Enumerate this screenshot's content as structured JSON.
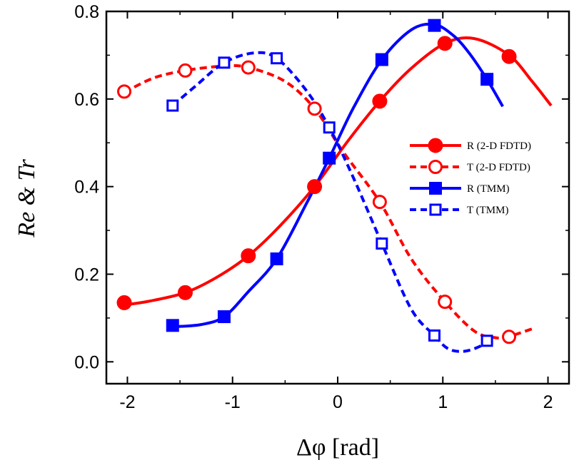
{
  "chart_data": {
    "type": "line",
    "title": "",
    "xlabel": "Δφ [rad]",
    "ylabel": "Re & Tr",
    "xlim": [
      -2.2,
      2.2
    ],
    "ylim": [
      -0.05,
      0.8
    ],
    "xticks": [
      "-2",
      "-1",
      "0",
      "1",
      "2"
    ],
    "xtick_values": [
      -2,
      -1,
      0,
      1,
      2
    ],
    "yticks": [
      "0.0",
      "0.2",
      "0.4",
      "0.6",
      "0.8"
    ],
    "ytick_values": [
      0.0,
      0.2,
      0.4,
      0.6,
      0.8
    ],
    "legend_position": "right-middle",
    "series": [
      {
        "name": "R (2-D FDTD)",
        "color": "#ff0000",
        "line": "solid",
        "marker": "filled-circle",
        "points": [
          [
            -2.03,
            0.135
          ],
          [
            -1.45,
            0.158
          ],
          [
            -0.85,
            0.242
          ],
          [
            -0.22,
            0.4
          ],
          [
            0.4,
            0.595
          ],
          [
            1.02,
            0.727
          ],
          [
            1.63,
            0.697
          ]
        ],
        "curve": [
          [
            -2.03,
            0.13
          ],
          [
            -1.8,
            0.138
          ],
          [
            -1.45,
            0.158
          ],
          [
            -1.15,
            0.193
          ],
          [
            -0.85,
            0.242
          ],
          [
            -0.55,
            0.31
          ],
          [
            -0.22,
            0.4
          ],
          [
            0.1,
            0.505
          ],
          [
            0.4,
            0.595
          ],
          [
            0.7,
            0.67
          ],
          [
            1.02,
            0.727
          ],
          [
            1.3,
            0.738
          ],
          [
            1.63,
            0.7
          ],
          [
            1.85,
            0.64
          ],
          [
            2.03,
            0.585
          ]
        ]
      },
      {
        "name": "T (2-D FDTD)",
        "color": "#ff0000",
        "line": "dashed",
        "marker": "open-circle",
        "points": [
          [
            -2.03,
            0.617
          ],
          [
            -1.45,
            0.665
          ],
          [
            -0.85,
            0.672
          ],
          [
            -0.22,
            0.578
          ],
          [
            0.4,
            0.365
          ],
          [
            1.02,
            0.137
          ],
          [
            1.63,
            0.057
          ]
        ],
        "curve": [
          [
            -2.03,
            0.615
          ],
          [
            -1.75,
            0.648
          ],
          [
            -1.45,
            0.665
          ],
          [
            -1.1,
            0.675
          ],
          [
            -0.85,
            0.672
          ],
          [
            -0.5,
            0.64
          ],
          [
            -0.22,
            0.578
          ],
          [
            0.05,
            0.48
          ],
          [
            0.4,
            0.365
          ],
          [
            0.7,
            0.235
          ],
          [
            1.02,
            0.137
          ],
          [
            1.3,
            0.07
          ],
          [
            1.5,
            0.055
          ],
          [
            1.63,
            0.058
          ],
          [
            1.87,
            0.077
          ]
        ]
      },
      {
        "name": "R (TMM)",
        "color": "#0000ff",
        "line": "solid",
        "marker": "filled-square",
        "points": [
          [
            -1.57,
            0.083
          ],
          [
            -1.08,
            0.103
          ],
          [
            -0.58,
            0.235
          ],
          [
            -0.08,
            0.465
          ],
          [
            0.42,
            0.69
          ],
          [
            0.92,
            0.768
          ],
          [
            1.42,
            0.645
          ]
        ],
        "curve": [
          [
            -1.57,
            0.08
          ],
          [
            -1.3,
            0.085
          ],
          [
            -1.08,
            0.103
          ],
          [
            -0.85,
            0.16
          ],
          [
            -0.58,
            0.235
          ],
          [
            -0.3,
            0.36
          ],
          [
            -0.08,
            0.465
          ],
          [
            0.15,
            0.58
          ],
          [
            0.42,
            0.69
          ],
          [
            0.7,
            0.758
          ],
          [
            0.92,
            0.77
          ],
          [
            1.1,
            0.745
          ],
          [
            1.25,
            0.705
          ],
          [
            1.42,
            0.645
          ],
          [
            1.57,
            0.583
          ]
        ]
      },
      {
        "name": "T (TMM)",
        "color": "#0000ff",
        "line": "dashed",
        "marker": "open-square",
        "points": [
          [
            -1.57,
            0.585
          ],
          [
            -1.08,
            0.683
          ],
          [
            -0.58,
            0.693
          ],
          [
            -0.08,
            0.535
          ],
          [
            0.42,
            0.27
          ],
          [
            0.92,
            0.06
          ],
          [
            1.42,
            0.048
          ]
        ],
        "curve": [
          [
            -1.57,
            0.585
          ],
          [
            -1.35,
            0.63
          ],
          [
            -1.08,
            0.683
          ],
          [
            -0.8,
            0.705
          ],
          [
            -0.58,
            0.693
          ],
          [
            -0.3,
            0.62
          ],
          [
            -0.08,
            0.535
          ],
          [
            0.15,
            0.42
          ],
          [
            0.42,
            0.27
          ],
          [
            0.7,
            0.12
          ],
          [
            0.92,
            0.06
          ],
          [
            1.05,
            0.03
          ],
          [
            1.2,
            0.024
          ],
          [
            1.35,
            0.035
          ],
          [
            1.42,
            0.048
          ]
        ]
      }
    ]
  }
}
